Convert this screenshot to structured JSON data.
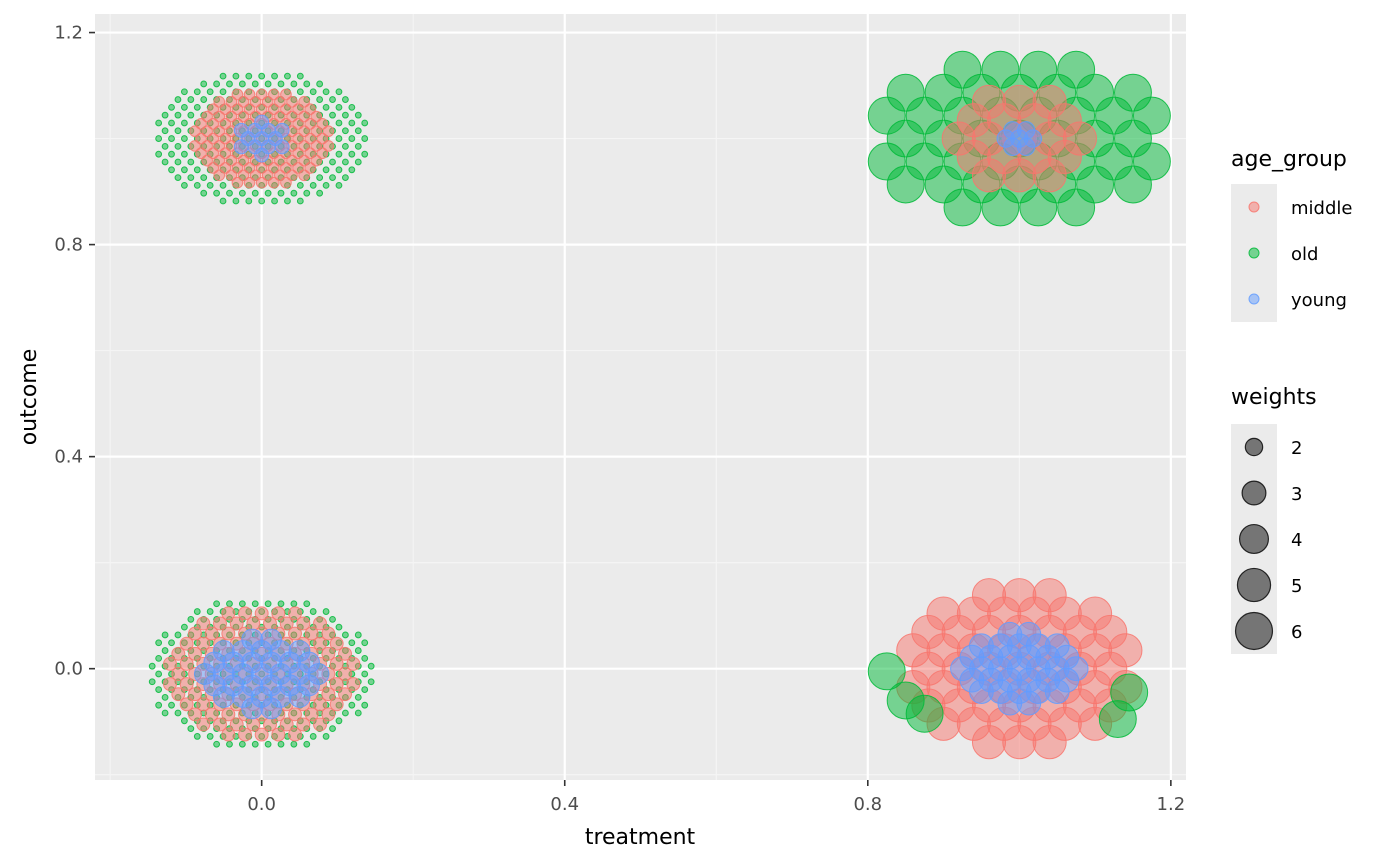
{
  "colors": {
    "panel_background": "#EBEBEB",
    "grid_major": "#FFFFFF",
    "grid_minor": "#F5F5F5",
    "legend_key_background": "#EBEBEB",
    "size_key_point": "#000000"
  },
  "chart_data": {
    "type": "scatter",
    "title": "",
    "xlabel": "treatment",
    "ylabel": "outcome",
    "xlim": [
      -0.22,
      1.22
    ],
    "ylim": [
      -0.21,
      1.235
    ],
    "x_ticks": [
      {
        "value": 0.0,
        "label": "0.0"
      },
      {
        "value": 0.4,
        "label": "0.4"
      },
      {
        "value": 0.8,
        "label": "0.8"
      },
      {
        "value": 1.2,
        "label": "1.2"
      }
    ],
    "y_ticks": [
      {
        "value": 0.0,
        "label": "0.0"
      },
      {
        "value": 0.4,
        "label": "0.4"
      },
      {
        "value": 0.8,
        "label": "0.8"
      },
      {
        "value": 1.2,
        "label": "1.2"
      }
    ],
    "x_minor": [
      -0.2,
      0.2,
      0.6,
      1.0
    ],
    "y_minor": [
      -0.2,
      0.2,
      0.6,
      1.0
    ],
    "grid": true,
    "point_alpha": 0.5,
    "color_legend": {
      "title": "age_group",
      "position": "right",
      "entries": [
        {
          "label": "middle",
          "color": "#F8766D"
        },
        {
          "label": "old",
          "color": "#00BA38"
        },
        {
          "label": "young",
          "color": "#619CFF"
        }
      ]
    },
    "size_legend": {
      "title": "weights",
      "position": "right",
      "entries": [
        {
          "label": "2",
          "value": 2
        },
        {
          "label": "3",
          "value": 3
        },
        {
          "label": "4",
          "value": 4
        },
        {
          "label": "5",
          "value": 5
        },
        {
          "label": "6",
          "value": 6
        }
      ]
    },
    "weights_range": [
      1,
      6.3
    ],
    "series": [
      {
        "group": "old",
        "treatment": 0,
        "outcome": 1,
        "weights": 1,
        "center": [
          0.0,
          1.0
        ],
        "radii": [
          0.14,
          0.13
        ],
        "spacing": 0.017
      },
      {
        "group": "middle",
        "treatment": 0,
        "outcome": 1,
        "weights": 1.3,
        "center": [
          0.0,
          1.0
        ],
        "radii": [
          0.09,
          0.09
        ],
        "spacing": 0.016
      },
      {
        "group": "young",
        "treatment": 0,
        "outcome": 1,
        "weights": 1.6,
        "center": [
          0.0,
          1.0
        ],
        "radii": [
          0.035,
          0.035
        ],
        "spacing": 0.018
      },
      {
        "group": "old",
        "treatment": 0,
        "outcome": 0,
        "weights": 1,
        "center": [
          0.0,
          -0.01
        ],
        "radii": [
          0.15,
          0.145
        ],
        "spacing": 0.017
      },
      {
        "group": "middle",
        "treatment": 0,
        "outcome": 0,
        "weights": 1.5,
        "center": [
          0.0,
          -0.01
        ],
        "radii": [
          0.125,
          0.125
        ],
        "spacing": 0.022
      },
      {
        "group": "young",
        "treatment": 0,
        "outcome": 0,
        "weights": 2.5,
        "center": [
          0.0,
          -0.01
        ],
        "radii": [
          0.085,
          0.07
        ],
        "spacing": 0.025
      },
      {
        "group": "old",
        "treatment": 1,
        "outcome": 1,
        "weights": 6,
        "center": [
          1.0,
          1.0
        ],
        "radii": [
          0.19,
          0.17
        ],
        "spacing": 0.05
      },
      {
        "group": "middle",
        "treatment": 1,
        "outcome": 1,
        "weights": 5,
        "center": [
          1.0,
          1.0
        ],
        "radii": [
          0.09,
          0.09
        ],
        "spacing": 0.04
      },
      {
        "group": "young",
        "treatment": 1,
        "outcome": 1,
        "weights": 2,
        "center": [
          1.0,
          1.0
        ],
        "radii": [
          0.025,
          0.025
        ],
        "spacing": 0.018
      },
      {
        "group": "middle",
        "treatment": 1,
        "outcome": 0,
        "weights": 5,
        "center": [
          1.0,
          0.0
        ],
        "radii": [
          0.15,
          0.15
        ],
        "spacing": 0.04
      },
      {
        "group": "young",
        "treatment": 1,
        "outcome": 0,
        "weights": 3,
        "center": [
          1.0,
          0.0
        ],
        "radii": [
          0.085,
          0.07
        ],
        "spacing": 0.025
      },
      {
        "group": "old",
        "treatment": 1,
        "outcome": 0,
        "weights": 6,
        "points": [
          [
            0.825,
            -0.005
          ],
          [
            0.85,
            -0.06
          ],
          [
            0.875,
            -0.085
          ],
          [
            1.13,
            -0.095
          ],
          [
            1.145,
            -0.045
          ]
        ]
      }
    ]
  }
}
